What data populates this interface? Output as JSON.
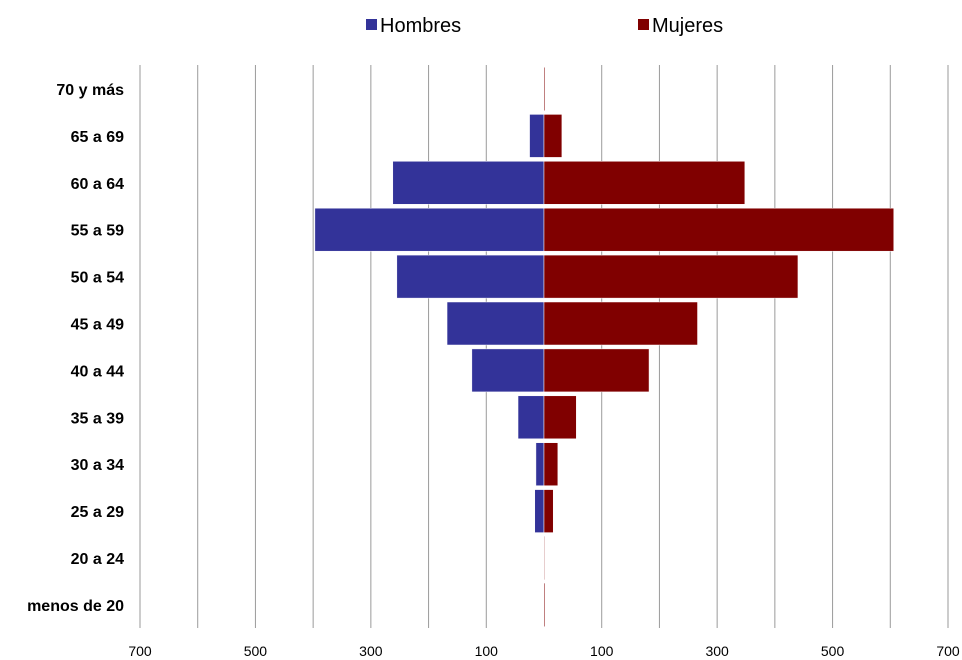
{
  "chart_data": {
    "type": "bar",
    "orientation": "horizontal",
    "layout": "population-pyramid",
    "categories": [
      "70 y más",
      "65 a 69",
      "60 a 64",
      "55 a 59",
      "50 a 54",
      "45 a 49",
      "40 a 44",
      "35 a 39",
      "30 a 34",
      "25 a 29",
      "20 a 24",
      "menos de 20"
    ],
    "series": [
      {
        "name": "Hombres",
        "color": "#333399",
        "side": "left",
        "values": [
          0,
          25,
          262,
          397,
          255,
          168,
          125,
          45,
          14,
          16,
          0,
          0
        ]
      },
      {
        "name": "Mujeres",
        "color": "#800000",
        "side": "right",
        "values": [
          0,
          31,
          348,
          606,
          440,
          266,
          182,
          56,
          24,
          16,
          1,
          0
        ]
      }
    ],
    "xlim": [
      -700,
      700
    ],
    "x_ticks": [
      -700,
      -500,
      -300,
      -100,
      100,
      300,
      500,
      700
    ],
    "x_tick_labels": [
      "700",
      "500",
      "300",
      "100",
      "100",
      "300",
      "500",
      "700"
    ],
    "x_grid_step": 100,
    "grid": true,
    "legend_position": "top",
    "title": "",
    "xlabel": "",
    "ylabel": ""
  }
}
